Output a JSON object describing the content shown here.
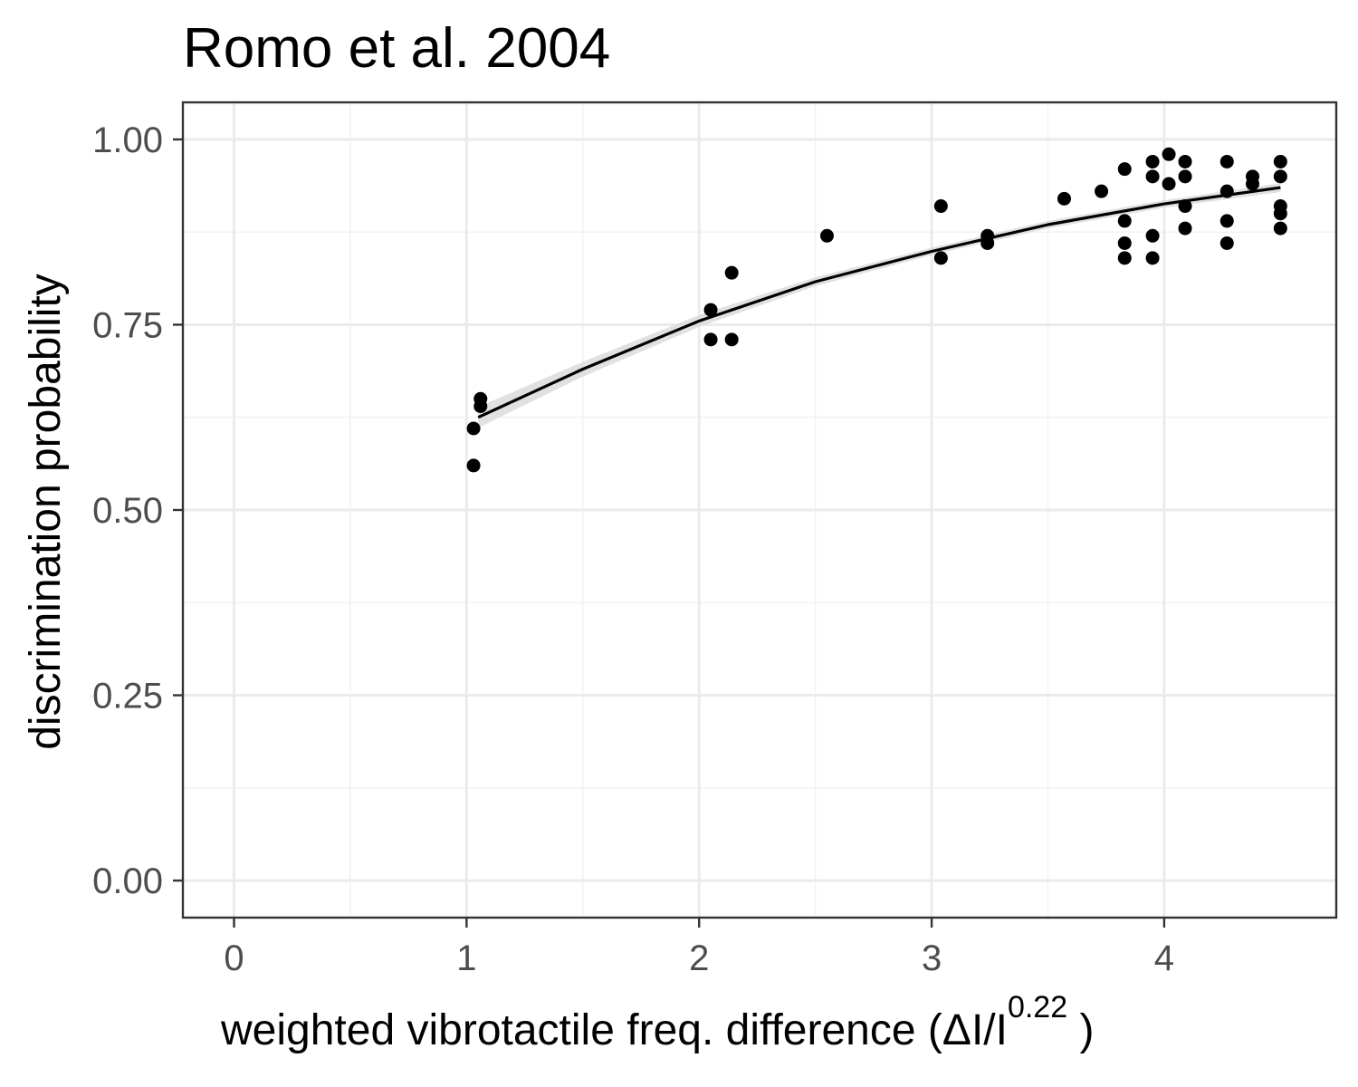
{
  "chart_data": {
    "type": "scatter",
    "title": "Romo et al. 2004",
    "xlabel": {
      "main": "weighted  vibrotactile freq.  difference (ΔI/I",
      "superscript": "0.22",
      "close": " )"
    },
    "ylabel": "discrimination probability",
    "xlim": [
      -0.22,
      4.74
    ],
    "ylim": [
      -0.05,
      1.05
    ],
    "x_ticks": [
      0,
      1,
      2,
      3,
      4
    ],
    "x_tick_labels": [
      "0",
      "1",
      "2",
      "3",
      "4"
    ],
    "y_ticks": [
      0,
      0.25,
      0.5,
      0.75,
      1.0
    ],
    "y_tick_labels": [
      "0.00",
      "0.25",
      "0.50",
      "0.75",
      "1.00"
    ],
    "grid": true,
    "colors": {
      "points": "#000000",
      "fit_line": "#000000",
      "confidence_band": "#d9d9d9",
      "panel_border": "#333333"
    },
    "series": [
      {
        "type": "scatter",
        "points": [
          [
            1.03,
            0.56
          ],
          [
            1.03,
            0.61
          ],
          [
            1.06,
            0.64
          ],
          [
            1.06,
            0.65
          ],
          [
            2.05,
            0.73
          ],
          [
            2.05,
            0.77
          ],
          [
            2.14,
            0.73
          ],
          [
            2.14,
            0.82
          ],
          [
            2.55,
            0.87
          ],
          [
            3.04,
            0.84
          ],
          [
            3.04,
            0.91
          ],
          [
            3.24,
            0.86
          ],
          [
            3.24,
            0.87
          ],
          [
            3.57,
            0.92
          ],
          [
            3.73,
            0.93
          ],
          [
            3.83,
            0.84
          ],
          [
            3.83,
            0.86
          ],
          [
            3.83,
            0.89
          ],
          [
            3.83,
            0.96
          ],
          [
            3.95,
            0.84
          ],
          [
            3.95,
            0.87
          ],
          [
            3.95,
            0.95
          ],
          [
            3.95,
            0.97
          ],
          [
            4.02,
            0.94
          ],
          [
            4.02,
            0.98
          ],
          [
            4.09,
            0.88
          ],
          [
            4.09,
            0.91
          ],
          [
            4.09,
            0.95
          ],
          [
            4.09,
            0.97
          ],
          [
            4.27,
            0.86
          ],
          [
            4.27,
            0.89
          ],
          [
            4.27,
            0.93
          ],
          [
            4.27,
            0.97
          ],
          [
            4.38,
            0.94
          ],
          [
            4.38,
            0.95
          ],
          [
            4.5,
            0.88
          ],
          [
            4.5,
            0.9
          ],
          [
            4.5,
            0.91
          ],
          [
            4.5,
            0.95
          ],
          [
            4.5,
            0.97
          ]
        ]
      },
      {
        "type": "line",
        "points": [
          [
            1.05,
            0.625
          ],
          [
            1.5,
            0.69
          ],
          [
            2.0,
            0.755
          ],
          [
            2.5,
            0.808
          ],
          [
            3.0,
            0.849
          ],
          [
            3.5,
            0.885
          ],
          [
            4.0,
            0.913
          ],
          [
            4.5,
            0.935
          ]
        ],
        "band_halfwidth": [
          0.014,
          0.01,
          0.008,
          0.006,
          0.005,
          0.005,
          0.005,
          0.006
        ]
      }
    ]
  }
}
